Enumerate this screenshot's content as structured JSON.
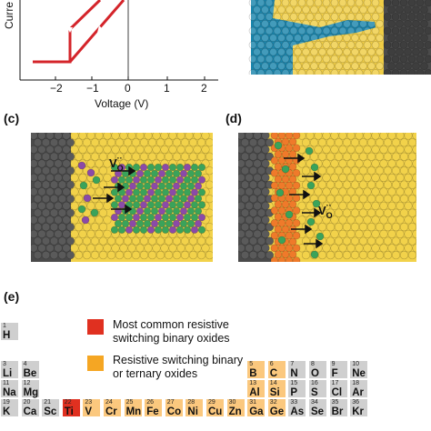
{
  "figure": {
    "panels": {
      "c": "(c)",
      "d": "(d)",
      "e": "(e)"
    },
    "panel_a": {
      "ylabel_visible": "Curre",
      "xlabel": "Voltage (V)",
      "xticks": [
        "−2",
        "−1",
        "0",
        "1",
        "2"
      ]
    },
    "vo_label": "V",
    "vo_superscript": "··",
    "vo_subscript": "O",
    "legend": {
      "red_label_line1": "Most common resistive",
      "red_label_line2": "switching binary oxides",
      "orange_label_line1": "Resistive switching binary",
      "orange_label_line2": "or ternary oxides"
    },
    "colors": {
      "red": "#e03020",
      "orange": "#f5a623",
      "light_orange": "#fbc87e",
      "gray": "#cfcfcf",
      "dark_gray": "#9a9a9a",
      "yellow_atom": "#f2d24a",
      "blue_atom": "#1e8fb5",
      "green_atom": "#3aa35a",
      "purple_atom": "#8b4aa8",
      "orange_atom": "#ef7a2a"
    }
  },
  "periodic_table": {
    "rows": [
      [
        {
          "n": "1",
          "s": "H",
          "c": "gray"
        }
      ],
      [
        {
          "n": "3",
          "s": "Li",
          "c": "gray"
        },
        {
          "n": "4",
          "s": "Be",
          "c": "gray"
        },
        {
          "n": "5",
          "s": "B",
          "c": "light_orange"
        },
        {
          "n": "6",
          "s": "C",
          "c": "light_orange"
        },
        {
          "n": "7",
          "s": "N",
          "c": "gray"
        },
        {
          "n": "8",
          "s": "O",
          "c": "gray"
        },
        {
          "n": "9",
          "s": "F",
          "c": "gray"
        },
        {
          "n": "10",
          "s": "Ne",
          "c": "gray"
        }
      ],
      [
        {
          "n": "11",
          "s": "Na",
          "c": "gray"
        },
        {
          "n": "12",
          "s": "Mg",
          "c": "gray"
        },
        {
          "n": "13",
          "s": "Al",
          "c": "light_orange"
        },
        {
          "n": "14",
          "s": "Si",
          "c": "light_orange"
        },
        {
          "n": "15",
          "s": "P",
          "c": "gray"
        },
        {
          "n": "16",
          "s": "S",
          "c": "gray"
        },
        {
          "n": "17",
          "s": "Cl",
          "c": "gray"
        },
        {
          "n": "18",
          "s": "Ar",
          "c": "gray"
        }
      ],
      [
        {
          "n": "19",
          "s": "K",
          "c": "gray"
        },
        {
          "n": "20",
          "s": "Ca",
          "c": "gray"
        },
        {
          "n": "21",
          "s": "Sc",
          "c": "gray"
        },
        {
          "n": "22",
          "s": "Ti",
          "c": "red"
        },
        {
          "n": "23",
          "s": "V",
          "c": "light_orange"
        },
        {
          "n": "24",
          "s": "Cr",
          "c": "light_orange"
        },
        {
          "n": "25",
          "s": "Mn",
          "c": "light_orange"
        },
        {
          "n": "26",
          "s": "Fe",
          "c": "light_orange"
        },
        {
          "n": "27",
          "s": "Co",
          "c": "light_orange"
        },
        {
          "n": "28",
          "s": "Ni",
          "c": "light_orange"
        },
        {
          "n": "29",
          "s": "Cu",
          "c": "light_orange"
        },
        {
          "n": "30",
          "s": "Zn",
          "c": "light_orange"
        },
        {
          "n": "31",
          "s": "Ga",
          "c": "light_orange"
        },
        {
          "n": "32",
          "s": "Ge",
          "c": "light_orange"
        },
        {
          "n": "33",
          "s": "As",
          "c": "gray"
        },
        {
          "n": "34",
          "s": "Se",
          "c": "gray"
        },
        {
          "n": "35",
          "s": "Br",
          "c": "gray"
        },
        {
          "n": "36",
          "s": "Kr",
          "c": "gray"
        }
      ]
    ]
  }
}
